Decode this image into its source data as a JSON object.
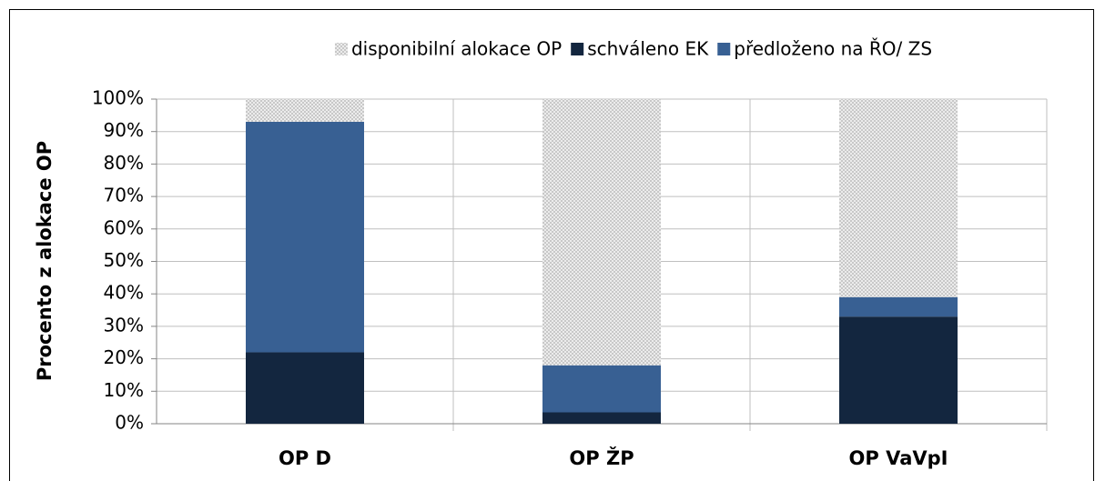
{
  "chart_data": {
    "type": "stacked_bar",
    "y_label": "Procento z alokace OP",
    "categories": [
      "OP D",
      "OP ŽP",
      "OP VaVpI"
    ],
    "series": [
      {
        "name": "schváleno EK",
        "color": "#13263f",
        "values": [
          22,
          3.5,
          33
        ]
      },
      {
        "name": "předloženo na ŘO/ ZS",
        "color": "#386093",
        "values": [
          71,
          14.5,
          6
        ]
      },
      {
        "name": "disponibilní alokace OP",
        "color": "#d9d9d9",
        "values": [
          7,
          82,
          61
        ]
      }
    ],
    "legend_order": [
      2,
      0,
      1
    ],
    "ylim": [
      0,
      100
    ],
    "yticks": [
      {
        "value": 0,
        "label": "0%"
      },
      {
        "value": 10,
        "label": "10%"
      },
      {
        "value": 20,
        "label": "20%"
      },
      {
        "value": 30,
        "label": "30%"
      },
      {
        "value": 40,
        "label": "40%"
      },
      {
        "value": 50,
        "label": "50%"
      },
      {
        "value": 60,
        "label": "60%"
      },
      {
        "value": 70,
        "label": "70%"
      },
      {
        "value": 80,
        "label": "80%"
      },
      {
        "value": 90,
        "label": "90%"
      },
      {
        "value": 100,
        "label": "100%"
      }
    ],
    "grid": true,
    "legend": "top"
  }
}
